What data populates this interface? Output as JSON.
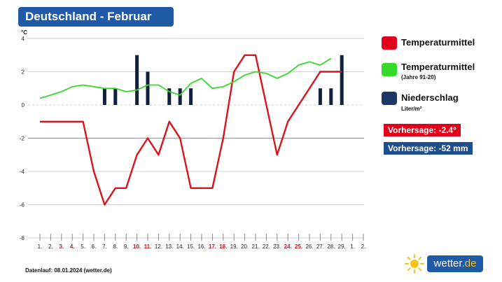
{
  "title": "Deutschland - Februar",
  "footer": "Datenlauf: 08.01.2024 (wetter.de)",
  "logo": {
    "text": "wetter",
    "suffix": ".de"
  },
  "legend": [
    {
      "label": "Temperaturmittel",
      "sub": "",
      "color": "#e3001b"
    },
    {
      "label": "Temperaturmittel",
      "sub": "(Jahre 91-20)",
      "color": "#37d928"
    },
    {
      "label": "Niederschlag",
      "sub": "Liter/m²",
      "color": "#1b3566"
    }
  ],
  "forecast": [
    {
      "text": "Vorhersage: -2.4°",
      "color": "#e3001b"
    },
    {
      "text": "Vorhersage: -52 mm",
      "color": "#1f4e8c"
    }
  ],
  "chart_data": {
    "type": "line",
    "yunit": "°C",
    "ylim": [
      -8,
      4
    ],
    "yticks": [
      "4",
      "2",
      "0",
      "-2",
      "-4",
      "-6",
      "-8"
    ],
    "xticks": [
      "1.",
      "2.",
      "3.",
      "4.",
      "5.",
      "6.",
      "7.",
      "8.",
      "9.",
      "10.",
      "11.",
      "12.",
      "13.",
      "14.",
      "15.",
      "16.",
      "17.",
      "18.",
      "19.",
      "20.",
      "21.",
      "22.",
      "23.",
      "24.",
      "25.",
      "26.",
      "27.",
      "28.",
      "29.",
      "1.",
      "2."
    ],
    "weekend_ticks": [
      2,
      3,
      9,
      10,
      16,
      17,
      23,
      24
    ],
    "series": [
      {
        "name": "Temperaturmittel",
        "color": "#d9141f",
        "x": [
          1,
          2,
          3,
          4,
          5,
          6,
          7,
          8,
          9,
          10,
          11,
          12,
          13,
          14,
          15,
          16,
          17,
          18,
          19,
          20,
          21,
          22,
          23,
          24,
          25,
          26,
          27,
          28,
          29
        ],
        "values": [
          -1,
          -1,
          -1,
          -1,
          -1,
          -4,
          -6,
          -5,
          -5,
          -3,
          -2,
          -3,
          -1,
          -2,
          -5,
          -5,
          -5,
          -2,
          2,
          3,
          3,
          0,
          -3,
          -1,
          0,
          1,
          2,
          2,
          2
        ]
      },
      {
        "name": "Temperaturmittel (Jahre 91-20)",
        "color": "#37d928",
        "x": [
          1,
          2,
          3,
          4,
          5,
          6,
          7,
          8,
          9,
          10,
          11,
          12,
          13,
          14,
          15,
          16,
          17,
          18,
          19,
          20,
          21,
          22,
          23,
          24,
          25,
          26,
          27,
          28
        ],
        "values": [
          0.4,
          0.6,
          0.8,
          1.1,
          1.2,
          1.1,
          1.0,
          1.0,
          0.8,
          0.9,
          1.2,
          1.2,
          0.8,
          0.6,
          1.3,
          1.6,
          1.0,
          1.1,
          1.4,
          1.8,
          2.0,
          1.9,
          1.6,
          1.9,
          2.4,
          2.6,
          2.4,
          2.8
        ]
      }
    ],
    "bars": {
      "name": "Niederschlag",
      "color": "#10203f",
      "x": [
        7,
        8,
        10,
        11,
        13,
        14,
        15,
        27,
        28,
        29
      ],
      "values": [
        1,
        1,
        3,
        2,
        1,
        1,
        1,
        1,
        1,
        3
      ]
    }
  }
}
